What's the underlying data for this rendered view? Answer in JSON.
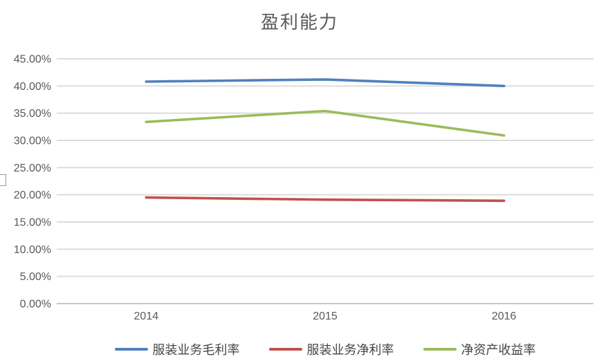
{
  "chart_data": {
    "type": "line",
    "title": "盈利能力",
    "categories": [
      "2014",
      "2015",
      "2016"
    ],
    "series": [
      {
        "name": "服装业务毛利率",
        "color": "#4F81BD",
        "values": [
          40.8,
          41.2,
          40.0
        ]
      },
      {
        "name": "服装业务净利率",
        "color": "#C0504D",
        "values": [
          19.5,
          19.1,
          18.9
        ]
      },
      {
        "name": "净资产收益率",
        "color": "#9BBB59",
        "values": [
          33.4,
          35.4,
          30.9
        ]
      }
    ],
    "unit": "percent",
    "ylim": [
      0,
      45
    ],
    "y_tick_step": 5,
    "y_ticks": [
      "0.00%",
      "5.00%",
      "10.00%",
      "15.00%",
      "20.00%",
      "25.00%",
      "30.00%",
      "35.00%",
      "40.00%",
      "45.00%"
    ],
    "grid": true,
    "legend_position": "bottom",
    "colors": {
      "grid": "#DCDCDC",
      "baseline": "#C8C8C8",
      "text": "#595959",
      "title": "#595959",
      "legend_text": "#454545"
    }
  }
}
